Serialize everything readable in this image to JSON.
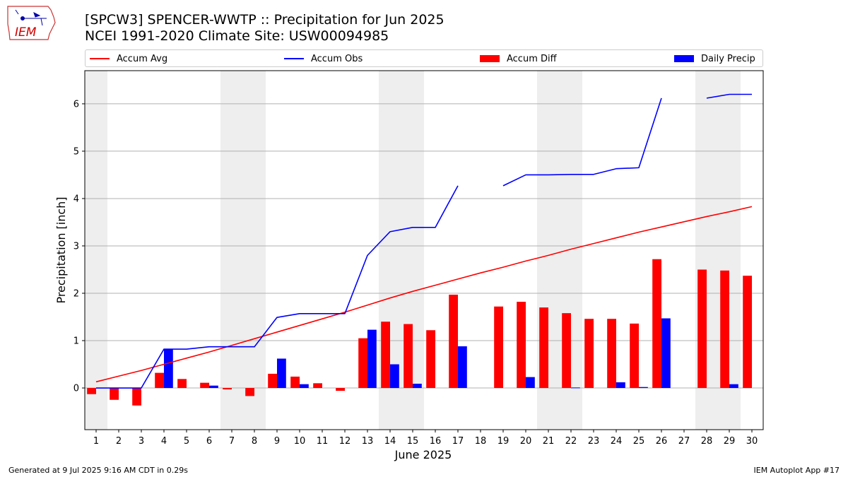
{
  "header": {
    "title": "[SPCW3] SPENCER-WWTP :: Precipitation for Jun 2025",
    "subtitle": "NCEI 1991-2020 Climate Site: USW00094985"
  },
  "logo": {
    "text": "IEM",
    "icon": "iowa-state-outline-logo"
  },
  "footer": {
    "left": "Generated at 9 Jul 2025 9:16 AM CDT in 0.29s",
    "right": "IEM Autoplot App #17"
  },
  "colors": {
    "avg": "#ff0000",
    "obs": "#0000ff",
    "diff": "#ff0000",
    "daily": "#0000ff",
    "weekend": "#eeeeee"
  },
  "chart_data": {
    "type": "bar",
    "xlabel": "June 2025",
    "ylabel": "Precipitation [inch]",
    "ylim": [
      -0.88,
      6.7
    ],
    "xlim": [
      0.5,
      30.5
    ],
    "grid": "horizontal",
    "legend_placement": "top",
    "categories": [
      1,
      2,
      3,
      4,
      5,
      6,
      7,
      8,
      9,
      10,
      11,
      12,
      13,
      14,
      15,
      16,
      17,
      18,
      19,
      20,
      21,
      22,
      23,
      24,
      25,
      26,
      27,
      28,
      29,
      30
    ],
    "yticks": [
      0,
      1,
      2,
      3,
      4,
      5,
      6
    ],
    "shaded_days": [
      [
        1,
        1
      ],
      [
        7,
        8
      ],
      [
        14,
        15
      ],
      [
        21,
        22
      ],
      [
        28,
        29
      ]
    ],
    "legend": [
      "Accum Avg",
      "Accum Obs",
      "Accum Diff",
      "Daily Precip"
    ],
    "series": [
      {
        "name": "Accum Avg",
        "kind": "line",
        "values": [
          0.13,
          0.25,
          0.37,
          0.5,
          0.63,
          0.76,
          0.9,
          1.04,
          1.18,
          1.32,
          1.46,
          1.6,
          1.75,
          1.9,
          2.04,
          2.17,
          2.3,
          2.43,
          2.55,
          2.68,
          2.8,
          2.93,
          3.05,
          3.17,
          3.29,
          3.4,
          3.51,
          3.62,
          3.72,
          3.83
        ]
      },
      {
        "name": "Accum Obs",
        "kind": "line",
        "values": [
          0.0,
          0.0,
          0.0,
          0.82,
          0.82,
          0.87,
          0.87,
          0.87,
          1.49,
          1.57,
          1.57,
          1.57,
          2.8,
          3.3,
          3.39,
          3.39,
          4.27,
          null,
          4.27,
          4.5,
          4.5,
          4.51,
          4.51,
          4.63,
          4.65,
          6.12,
          null,
          6.12,
          6.2,
          6.2
        ]
      },
      {
        "name": "Accum Diff",
        "kind": "bar",
        "values": [
          -0.13,
          -0.25,
          -0.37,
          0.32,
          0.19,
          0.11,
          -0.03,
          -0.17,
          0.3,
          0.24,
          0.1,
          -0.06,
          1.05,
          1.4,
          1.35,
          1.22,
          1.97,
          null,
          1.72,
          1.82,
          1.7,
          1.58,
          1.46,
          1.46,
          1.36,
          2.72,
          null,
          2.5,
          2.48,
          2.37
        ]
      },
      {
        "name": "Daily Precip",
        "kind": "bar",
        "values": [
          0,
          0,
          0,
          0.82,
          0,
          0.05,
          0,
          0,
          0.62,
          0.08,
          0,
          0,
          1.23,
          0.5,
          0.09,
          0,
          0.88,
          null,
          0,
          0.23,
          0,
          0.01,
          0,
          0.12,
          0.02,
          1.47,
          null,
          0,
          0.08,
          0
        ]
      }
    ]
  }
}
